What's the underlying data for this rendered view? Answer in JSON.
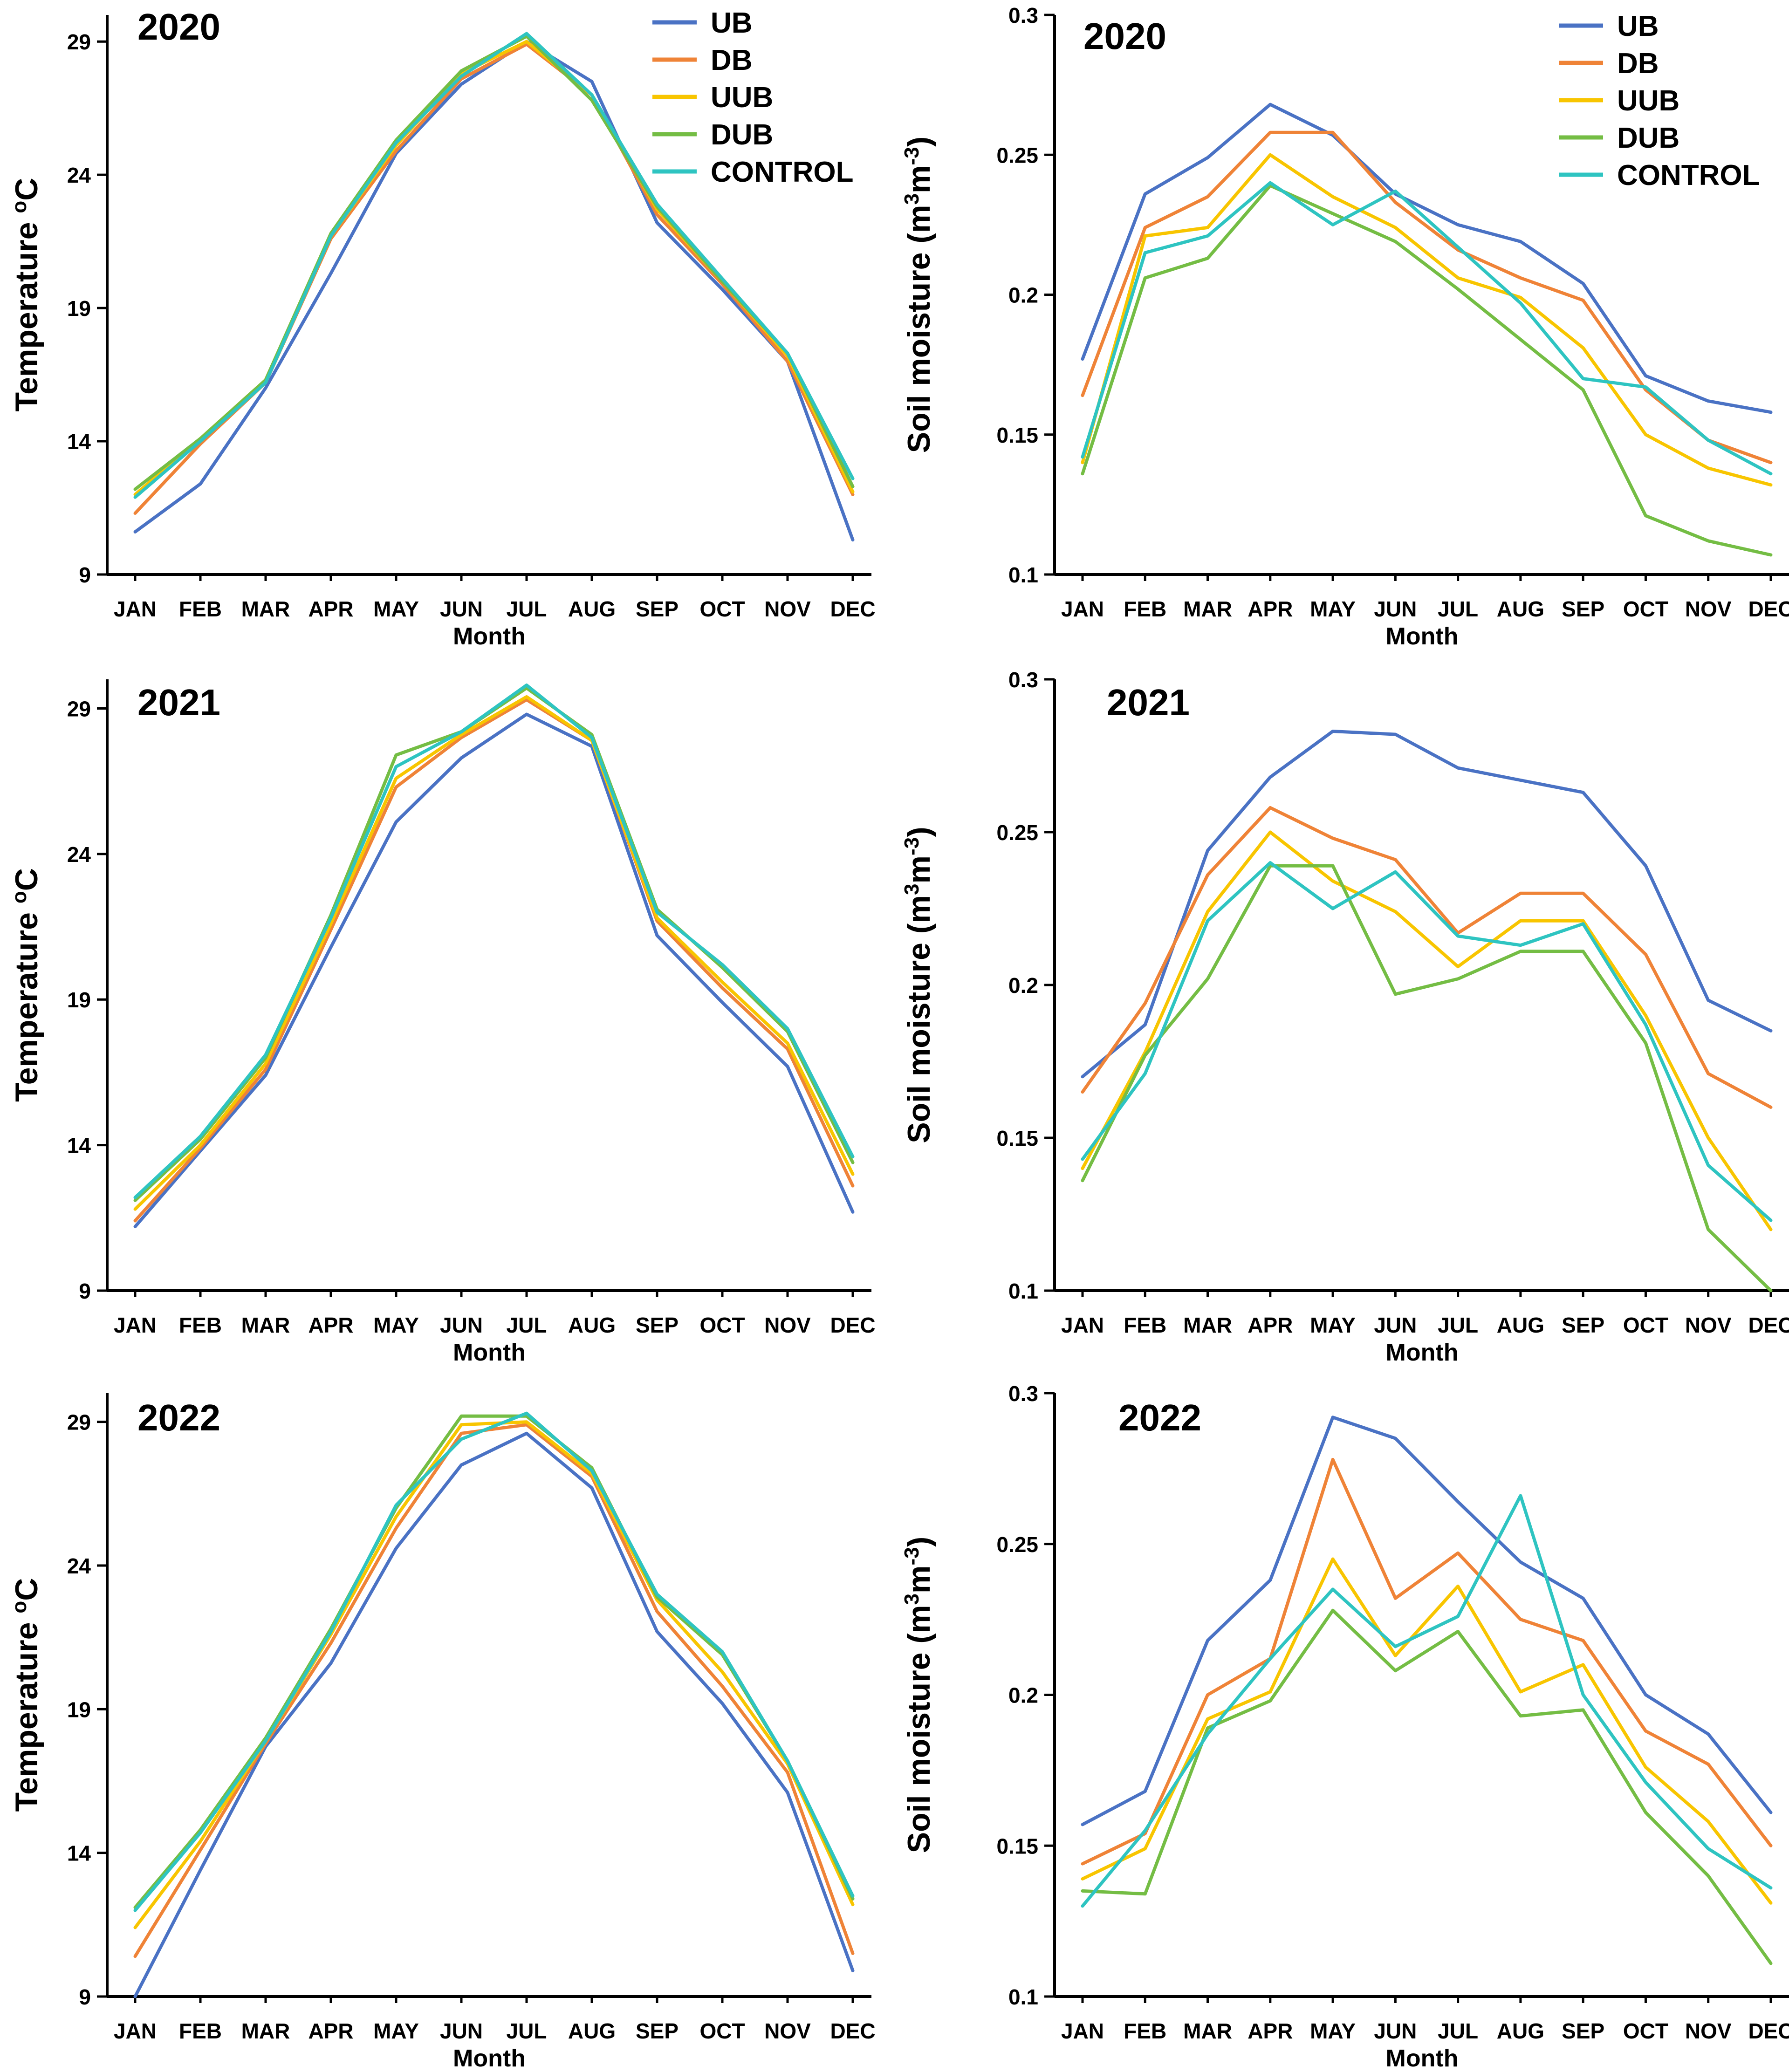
{
  "figure": {
    "x_label": "Month",
    "months": [
      "JAN",
      "FEB",
      "MAR",
      "APR",
      "MAY",
      "JUN",
      "JUL",
      "AUG",
      "SEP",
      "OCT",
      "NOV",
      "DEC"
    ],
    "legend": [
      {
        "name": "UB",
        "color": "#4a72c4"
      },
      {
        "name": "DB",
        "color": "#ef8337"
      },
      {
        "name": "UUB",
        "color": "#f8c500"
      },
      {
        "name": "DUB",
        "color": "#74bd44"
      },
      {
        "name": "CONTROL",
        "color": "#2ec4c1"
      }
    ]
  },
  "chart_data": [
    {
      "type": "line",
      "title": "2020",
      "xlabel": "Month",
      "ylabel": "Temperature °C",
      "categories": [
        "JAN",
        "FEB",
        "MAR",
        "APR",
        "MAY",
        "JUN",
        "JUL",
        "AUG",
        "SEP",
        "OCT",
        "NOV",
        "DEC"
      ],
      "ylim": [
        9,
        30
      ],
      "yticks": [
        9,
        14,
        19,
        24,
        29
      ],
      "ytick_labels": [
        "9",
        "14",
        "19",
        "24",
        "29"
      ],
      "series": [
        {
          "name": "UB",
          "color": "#4a72c4",
          "values": [
            10.6,
            12.4,
            16.0,
            20.3,
            24.8,
            27.4,
            29.0,
            27.5,
            22.2,
            19.7,
            17.0,
            10.3
          ]
        },
        {
          "name": "DB",
          "color": "#ef8337",
          "values": [
            11.3,
            13.9,
            16.2,
            21.6,
            24.9,
            27.6,
            28.9,
            27.0,
            22.5,
            19.9,
            17.0,
            12.0
          ]
        },
        {
          "name": "UUB",
          "color": "#f8c500",
          "values": [
            12.0,
            14.1,
            16.3,
            21.7,
            25.1,
            27.8,
            29.0,
            27.0,
            22.7,
            20.0,
            17.2,
            12.1
          ]
        },
        {
          "name": "DUB",
          "color": "#74bd44",
          "values": [
            12.2,
            14.1,
            16.3,
            21.8,
            25.3,
            27.9,
            29.2,
            26.8,
            22.8,
            20.0,
            17.3,
            12.3
          ]
        },
        {
          "name": "CONTROL",
          "color": "#2ec4c1",
          "values": [
            11.9,
            14.0,
            16.2,
            21.7,
            25.2,
            27.7,
            29.3,
            27.0,
            22.9,
            20.1,
            17.3,
            12.6
          ]
        }
      ]
    },
    {
      "type": "line",
      "title": "2020",
      "xlabel": "Month",
      "ylabel": "Soil moisture (m³m⁻³)",
      "categories": [
        "JAN",
        "FEB",
        "MAR",
        "APR",
        "MAY",
        "JUN",
        "JUL",
        "AUG",
        "SEP",
        "OCT",
        "NOV",
        "DEC"
      ],
      "ylim": [
        0.1,
        0.3
      ],
      "yticks": [
        0.1,
        0.15,
        0.2,
        0.25,
        0.3
      ],
      "ytick_labels": [
        "0.1",
        "0.15",
        "0.2",
        "0.25",
        "0.3"
      ],
      "series": [
        {
          "name": "UB",
          "color": "#4a72c4",
          "values": [
            0.177,
            0.236,
            0.249,
            0.268,
            0.257,
            0.236,
            0.225,
            0.219,
            0.204,
            0.171,
            0.162,
            0.158
          ]
        },
        {
          "name": "DB",
          "color": "#ef8337",
          "values": [
            0.164,
            0.224,
            0.235,
            0.258,
            0.258,
            0.233,
            0.216,
            0.206,
            0.198,
            0.166,
            0.148,
            0.14
          ]
        },
        {
          "name": "UUB",
          "color": "#f8c500",
          "values": [
            0.14,
            0.221,
            0.224,
            0.25,
            0.235,
            0.224,
            0.206,
            0.199,
            0.181,
            0.15,
            0.138,
            0.132
          ]
        },
        {
          "name": "DUB",
          "color": "#74bd44",
          "values": [
            0.136,
            0.206,
            0.213,
            0.239,
            0.229,
            0.219,
            0.202,
            0.184,
            0.166,
            0.121,
            0.112,
            0.107
          ]
        },
        {
          "name": "CONTROL",
          "color": "#2ec4c1",
          "values": [
            0.142,
            0.215,
            0.221,
            0.24,
            0.225,
            0.237,
            0.217,
            0.197,
            0.17,
            0.167,
            0.148,
            0.136
          ]
        }
      ]
    },
    {
      "type": "line",
      "title": "2021",
      "xlabel": "Month",
      "ylabel": "Temperature °C",
      "categories": [
        "JAN",
        "FEB",
        "MAR",
        "APR",
        "MAY",
        "JUN",
        "JUL",
        "AUG",
        "SEP",
        "OCT",
        "NOV",
        "DEC"
      ],
      "ylim": [
        9,
        30
      ],
      "yticks": [
        9,
        14,
        19,
        24,
        29
      ],
      "ytick_labels": [
        "9",
        "14",
        "19",
        "24",
        "29"
      ],
      "series": [
        {
          "name": "UB",
          "color": "#4a72c4",
          "values": [
            11.2,
            13.8,
            16.4,
            20.8,
            25.1,
            27.3,
            28.8,
            27.7,
            21.2,
            18.9,
            16.7,
            11.7
          ]
        },
        {
          "name": "DB",
          "color": "#ef8337",
          "values": [
            11.4,
            13.9,
            16.6,
            21.4,
            26.3,
            28.0,
            29.3,
            27.9,
            21.7,
            19.4,
            17.3,
            12.6
          ]
        },
        {
          "name": "UUB",
          "color": "#f8c500",
          "values": [
            11.8,
            14.0,
            16.8,
            21.6,
            26.6,
            28.1,
            29.4,
            27.9,
            21.8,
            19.6,
            17.5,
            13.0
          ]
        },
        {
          "name": "DUB",
          "color": "#74bd44",
          "values": [
            12.1,
            14.2,
            17.0,
            21.9,
            27.4,
            28.2,
            29.7,
            28.1,
            22.1,
            20.1,
            17.9,
            13.4
          ]
        },
        {
          "name": "CONTROL",
          "color": "#2ec4c1",
          "values": [
            12.2,
            14.3,
            17.1,
            21.8,
            27.0,
            28.2,
            29.8,
            28.0,
            22.0,
            20.2,
            18.0,
            13.6
          ]
        }
      ]
    },
    {
      "type": "line",
      "title": "2021",
      "xlabel": "Month",
      "ylabel": "Soil moisture (m³m⁻³)",
      "categories": [
        "JAN",
        "FEB",
        "MAR",
        "APR",
        "MAY",
        "JUN",
        "JUL",
        "AUG",
        "SEP",
        "OCT",
        "NOV",
        "DEC"
      ],
      "ylim": [
        0.1,
        0.3
      ],
      "yticks": [
        0.1,
        0.15,
        0.2,
        0.25,
        0.3
      ],
      "ytick_labels": [
        "0.1",
        "0.15",
        "0.2",
        "0.25",
        "0.3"
      ],
      "series": [
        {
          "name": "UB",
          "color": "#4a72c4",
          "values": [
            0.17,
            0.187,
            0.244,
            0.268,
            0.283,
            0.282,
            0.271,
            0.267,
            0.263,
            0.239,
            0.195,
            0.185
          ]
        },
        {
          "name": "DB",
          "color": "#ef8337",
          "values": [
            0.165,
            0.194,
            0.236,
            0.258,
            0.248,
            0.241,
            0.217,
            0.23,
            0.23,
            0.21,
            0.171,
            0.16
          ]
        },
        {
          "name": "UUB",
          "color": "#f8c500",
          "values": [
            0.14,
            0.178,
            0.224,
            0.25,
            0.234,
            0.224,
            0.206,
            0.221,
            0.221,
            0.19,
            0.15,
            0.12
          ]
        },
        {
          "name": "DUB",
          "color": "#74bd44",
          "values": [
            0.136,
            0.177,
            0.202,
            0.239,
            0.239,
            0.197,
            0.202,
            0.211,
            0.211,
            0.181,
            0.12,
            0.1
          ]
        },
        {
          "name": "CONTROL",
          "color": "#2ec4c1",
          "values": [
            0.143,
            0.171,
            0.221,
            0.24,
            0.225,
            0.237,
            0.216,
            0.213,
            0.22,
            0.187,
            0.141,
            0.123
          ]
        }
      ]
    },
    {
      "type": "line",
      "title": "2022",
      "xlabel": "Month",
      "ylabel": "Temperature °C",
      "categories": [
        "JAN",
        "FEB",
        "MAR",
        "APR",
        "MAY",
        "JUN",
        "JUL",
        "AUG",
        "SEP",
        "OCT",
        "NOV",
        "DEC"
      ],
      "ylim": [
        9,
        30
      ],
      "yticks": [
        9,
        14,
        19,
        24,
        29
      ],
      "ytick_labels": [
        "9",
        "14",
        "19",
        "24",
        "29"
      ],
      "series": [
        {
          "name": "UB",
          "color": "#4a72c4",
          "values": [
            9.0,
            13.4,
            17.7,
            20.6,
            24.6,
            27.5,
            28.6,
            26.7,
            21.7,
            19.2,
            16.1,
            9.9
          ]
        },
        {
          "name": "DB",
          "color": "#ef8337",
          "values": [
            10.4,
            14.1,
            17.8,
            21.3,
            25.3,
            28.6,
            28.9,
            27.1,
            22.4,
            19.8,
            16.8,
            10.5
          ]
        },
        {
          "name": "UUB",
          "color": "#f8c500",
          "values": [
            11.4,
            14.4,
            17.9,
            21.6,
            25.7,
            28.9,
            29.0,
            27.2,
            22.8,
            20.3,
            17.1,
            12.2
          ]
        },
        {
          "name": "DUB",
          "color": "#74bd44",
          "values": [
            12.1,
            14.8,
            18.0,
            21.8,
            26.0,
            29.2,
            29.2,
            27.4,
            22.9,
            20.9,
            17.2,
            12.4
          ]
        },
        {
          "name": "CONTROL",
          "color": "#2ec4c1",
          "values": [
            12.0,
            14.7,
            17.9,
            21.7,
            26.1,
            28.4,
            29.3,
            27.3,
            23.0,
            21.0,
            17.2,
            12.5
          ]
        }
      ]
    },
    {
      "type": "line",
      "title": "2022",
      "xlabel": "Month",
      "ylabel": "Soil moisture (m³m⁻³)",
      "categories": [
        "JAN",
        "FEB",
        "MAR",
        "APR",
        "MAY",
        "JUN",
        "JUL",
        "AUG",
        "SEP",
        "OCT",
        "NOV",
        "DEC"
      ],
      "ylim": [
        0.1,
        0.3
      ],
      "yticks": [
        0.1,
        0.15,
        0.2,
        0.25,
        0.3
      ],
      "ytick_labels": [
        "0.1",
        "0.15",
        "0.2",
        "0.25",
        "0.3"
      ],
      "series": [
        {
          "name": "UB",
          "color": "#4a72c4",
          "values": [
            0.157,
            0.168,
            0.218,
            0.238,
            0.292,
            0.285,
            0.264,
            0.244,
            0.232,
            0.2,
            0.187,
            0.161
          ]
        },
        {
          "name": "DB",
          "color": "#ef8337",
          "values": [
            0.144,
            0.154,
            0.2,
            0.212,
            0.278,
            0.232,
            0.247,
            0.225,
            0.218,
            0.188,
            0.177,
            0.15
          ]
        },
        {
          "name": "UUB",
          "color": "#f8c500",
          "values": [
            0.139,
            0.149,
            0.192,
            0.201,
            0.245,
            0.213,
            0.236,
            0.201,
            0.21,
            0.176,
            0.158,
            0.131
          ]
        },
        {
          "name": "DUB",
          "color": "#74bd44",
          "values": [
            0.135,
            0.134,
            0.189,
            0.198,
            0.228,
            0.208,
            0.221,
            0.193,
            0.195,
            0.161,
            0.14,
            0.111
          ]
        },
        {
          "name": "CONTROL",
          "color": "#2ec4c1",
          "values": [
            0.13,
            0.155,
            0.187,
            0.212,
            0.235,
            0.216,
            0.226,
            0.266,
            0.2,
            0.171,
            0.149,
            0.136
          ]
        }
      ]
    }
  ]
}
